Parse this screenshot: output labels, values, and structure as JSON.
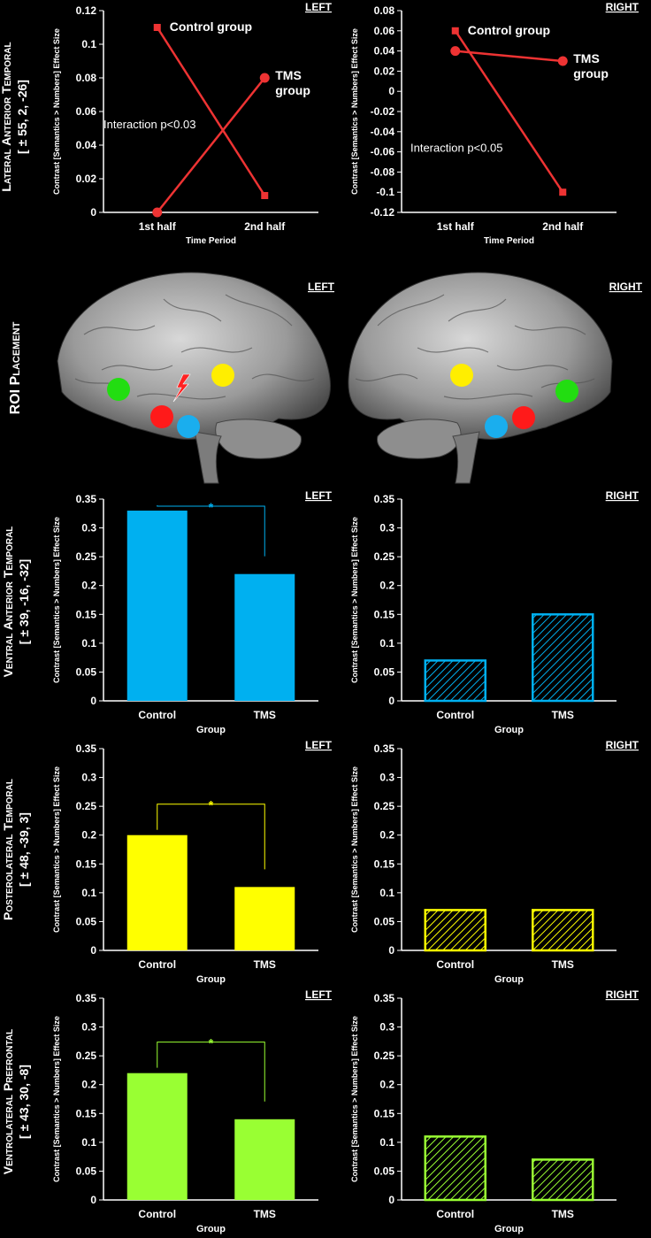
{
  "rows": [
    {
      "label_line1": "Lateral Anterior Temporal",
      "label_line2": "[ ± 55, 2, -26]"
    },
    {
      "label_line1": "ROI Placement",
      "label_line2": ""
    },
    {
      "label_line1": "Ventral Anterior Temporal",
      "label_line2": "[ ± 39, -16, -32]"
    },
    {
      "label_line1": "Posterolateral Temporal",
      "label_line2": "[ ± 48, -39, 3]"
    },
    {
      "label_line1": "Ventrolateral Prefrontal",
      "label_line2": "[ ± 43, 30, -8]"
    }
  ],
  "ylabel": "Contrast [Semantics > Numbers] Effect Size",
  "roi": {
    "left_label": "LEFT",
    "right_label": "RIGHT",
    "marker_colors": {
      "red": "#ff1a1a",
      "yellow": "#ffee00",
      "green": "#22dd11",
      "blue": "#1aaeee"
    }
  },
  "chart_data": [
    {
      "type": "line",
      "hemisphere": "LEFT",
      "categories": [
        "1st half",
        "2nd half"
      ],
      "xlabel": "Time Period",
      "ylabel": "",
      "ylim": [
        0,
        0.12
      ],
      "yticks": [
        "0",
        "0.02",
        "0.04",
        "0.06",
        "0.08",
        "0.1",
        "0.12"
      ],
      "series": [
        {
          "name": "Control group",
          "values": [
            0.11,
            0.01
          ],
          "marker": "square"
        },
        {
          "name": "TMS group",
          "name_line1": "TMS",
          "name_line2": "group",
          "values": [
            0.0,
            0.08
          ],
          "marker": "circle"
        }
      ],
      "annotation": "Interaction p<0.03",
      "color": "#ee3333"
    },
    {
      "type": "line",
      "hemisphere": "RIGHT",
      "categories": [
        "1st half",
        "2nd half"
      ],
      "xlabel": "Time Period",
      "ylabel": "",
      "ylim": [
        -0.12,
        0.08
      ],
      "yticks": [
        "-0.12",
        "-0.1",
        "-0.08",
        "-0.06",
        "-0.04",
        "-0.02",
        "0",
        "0.02",
        "0.04",
        "0.06",
        "0.08"
      ],
      "series": [
        {
          "name": "Control group",
          "values": [
            0.06,
            -0.1
          ],
          "marker": "square"
        },
        {
          "name": "TMS group",
          "name_line1": "TMS",
          "name_line2": "group",
          "values": [
            0.04,
            0.03
          ],
          "marker": "circle"
        }
      ],
      "annotation": "Interaction p<0.05",
      "color": "#ee3333"
    },
    {
      "type": "bar",
      "hemisphere": "LEFT",
      "categories": [
        "Control",
        "TMS"
      ],
      "values": [
        0.33,
        0.22
      ],
      "xlabel": "Group",
      "ylim": [
        0,
        0.35
      ],
      "significance": "*",
      "color": "#00b0f0",
      "hatched": false
    },
    {
      "type": "bar",
      "hemisphere": "RIGHT",
      "categories": [
        "Control",
        "TMS"
      ],
      "values": [
        0.07,
        0.15
      ],
      "xlabel": "Group",
      "ylim": [
        0,
        0.35
      ],
      "significance": "",
      "color": "#00b0f0",
      "hatched": true
    },
    {
      "type": "bar",
      "hemisphere": "LEFT",
      "categories": [
        "Control",
        "TMS"
      ],
      "values": [
        0.2,
        0.11
      ],
      "xlabel": "Group",
      "ylim": [
        0,
        0.35
      ],
      "significance": "*",
      "color": "#ffff00",
      "hatched": false
    },
    {
      "type": "bar",
      "hemisphere": "RIGHT",
      "categories": [
        "Control",
        "TMS"
      ],
      "values": [
        0.07,
        0.07
      ],
      "xlabel": "Group",
      "ylim": [
        0,
        0.35
      ],
      "significance": "",
      "color": "#ffff00",
      "hatched": true
    },
    {
      "type": "bar",
      "hemisphere": "LEFT",
      "categories": [
        "Control",
        "TMS"
      ],
      "values": [
        0.22,
        0.14
      ],
      "xlabel": "Group",
      "ylim": [
        0,
        0.35
      ],
      "significance": "*",
      "color": "#99ff33",
      "hatched": false
    },
    {
      "type": "bar",
      "hemisphere": "RIGHT",
      "categories": [
        "Control",
        "TMS"
      ],
      "values": [
        0.11,
        0.07
      ],
      "xlabel": "Group",
      "ylim": [
        0,
        0.35
      ],
      "significance": "",
      "color": "#99ff33",
      "hatched": true
    }
  ],
  "bar_yticks": [
    "0",
    "0.05",
    "0.1",
    "0.15",
    "0.2",
    "0.25",
    "0.3",
    "0.35"
  ]
}
